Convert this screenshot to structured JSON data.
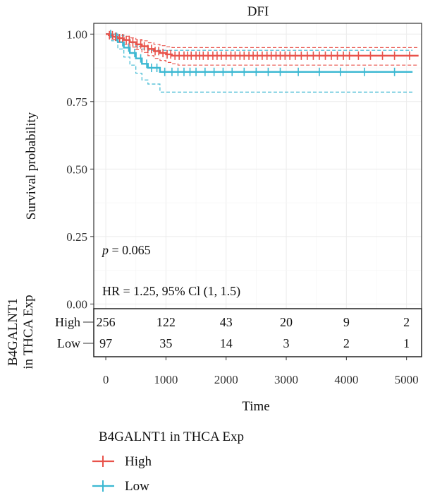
{
  "chart_data": {
    "type": "line",
    "title": "DFI",
    "xlabel": "Time",
    "ylabel": "Survival probability",
    "xlim": [
      -200,
      5250
    ],
    "ylim": [
      -0.02,
      1.04
    ],
    "x_ticks": [
      0,
      1000,
      2000,
      3000,
      4000,
      5000
    ],
    "x_tick_labels": [
      "0",
      "1000",
      "2000",
      "3000",
      "4000",
      "5000"
    ],
    "y_ticks": [
      0,
      0.25,
      0.5,
      0.75,
      1.0
    ],
    "y_tick_labels": [
      "0.00",
      "0.25",
      "0.50",
      "0.75",
      "1.00"
    ],
    "grid": true,
    "p_value_label": "p",
    "p_value_text": " = 0.065",
    "hr_text": "HR = 1.25, 95% Cl (1, 1.5)",
    "series": [
      {
        "name": "High",
        "color": "#e8524a",
        "x": [
          0,
          50,
          120,
          200,
          300,
          400,
          500,
          600,
          700,
          800,
          900,
          1000,
          1100,
          1200,
          5200
        ],
        "y": [
          1.0,
          0.996,
          0.99,
          0.985,
          0.978,
          0.97,
          0.962,
          0.955,
          0.945,
          0.937,
          0.93,
          0.925,
          0.92,
          0.92,
          0.92
        ],
        "ci_upper": [
          1.0,
          1.0,
          1.0,
          0.997,
          0.992,
          0.986,
          0.98,
          0.975,
          0.968,
          0.962,
          0.957,
          0.953,
          0.95,
          0.95,
          0.95
        ],
        "ci_lower": [
          1.0,
          0.99,
          0.98,
          0.97,
          0.962,
          0.952,
          0.942,
          0.932,
          0.92,
          0.91,
          0.902,
          0.895,
          0.89,
          0.885,
          0.885
        ],
        "censor_x": [
          60,
          110,
          160,
          230,
          280,
          340,
          390,
          450,
          520,
          580,
          640,
          700,
          760,
          820,
          880,
          950,
          1020,
          1080,
          1150,
          1220,
          1300,
          1360,
          1420,
          1500,
          1560,
          1620,
          1700,
          1780,
          1850,
          1920,
          2000,
          2080,
          2150,
          2230,
          2300,
          2380,
          2450,
          2520,
          2600,
          2680,
          2750,
          2830,
          2900,
          2980,
          3060,
          3150,
          3250,
          3350,
          3450,
          3550,
          3650,
          3750,
          3850,
          3950,
          4050,
          4200,
          4400,
          4600,
          4800,
          5050
        ]
      },
      {
        "name": "Low",
        "color": "#3cb8d2",
        "x": [
          0,
          100,
          200,
          300,
          400,
          500,
          600,
          700,
          900,
          5100
        ],
        "y": [
          1.0,
          0.99,
          0.97,
          0.95,
          0.93,
          0.91,
          0.89,
          0.875,
          0.86,
          0.86
        ],
        "ci_upper": [
          1.0,
          1.0,
          0.995,
          0.98,
          0.968,
          0.955,
          0.945,
          0.94,
          0.94,
          0.94
        ],
        "ci_lower": [
          1.0,
          0.975,
          0.945,
          0.915,
          0.885,
          0.855,
          0.83,
          0.815,
          0.785,
          0.785
        ],
        "censor_x": [
          80,
          180,
          280,
          380,
          480,
          580,
          680,
          760,
          850,
          980,
          1100,
          1200,
          1300,
          1400,
          1500,
          1650,
          1800,
          1950,
          2100,
          2300,
          2500,
          2700,
          2900,
          3200,
          3550,
          3900,
          4300,
          4800
        ]
      }
    ],
    "risk_table": {
      "ylabel_line1": "B4GALNT1",
      "ylabel_line2": "in THCA Exp",
      "rows": [
        {
          "label": "High",
          "values": [
            "256",
            "122",
            "43",
            "20",
            "9",
            "2"
          ]
        },
        {
          "label": "Low",
          "values": [
            "97",
            "35",
            "14",
            "3",
            "2",
            "1"
          ]
        }
      ]
    },
    "legend": {
      "title": "B4GALNT1 in THCA Exp",
      "position": "bottom",
      "entries": [
        "High",
        "Low"
      ]
    }
  }
}
